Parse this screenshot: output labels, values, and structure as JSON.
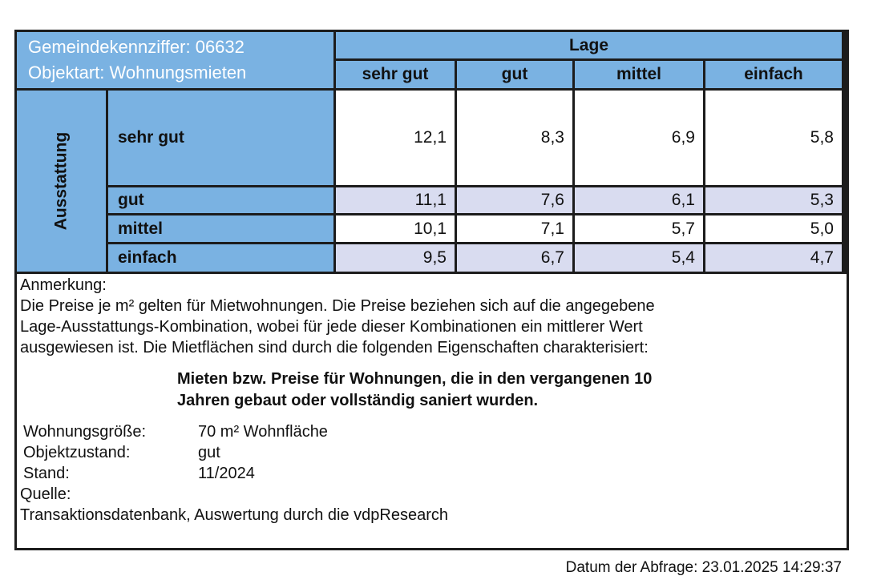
{
  "header": {
    "left_line1": "Gemeindekennziffer: 06632",
    "left_line2": "Objektart: Wohnungsmieten",
    "lage_label": "Lage",
    "columns": [
      "sehr gut",
      "gut",
      "mittel",
      "einfach"
    ]
  },
  "matrix": {
    "axis_label": "Ausstattung",
    "rows": [
      {
        "label": "sehr gut",
        "values": [
          "12,1",
          "8,3",
          "6,9",
          "5,8"
        ]
      },
      {
        "label": "gut",
        "values": [
          "11,1",
          "7,6",
          "6,1",
          "5,3"
        ]
      },
      {
        "label": "mittel",
        "values": [
          "10,1",
          "7,1",
          "5,7",
          "5,0"
        ]
      },
      {
        "label": "einfach",
        "values": [
          "9,5",
          "6,7",
          "5,4",
          "4,7"
        ]
      }
    ]
  },
  "chart_data": {
    "type": "table",
    "title": "Wohnungsmieten Gemeindekennziffer 06632 (Preise je m²)",
    "row_axis": "Ausstattung",
    "col_axis": "Lage",
    "categories": [
      "sehr gut",
      "gut",
      "mittel",
      "einfach"
    ],
    "series": [
      {
        "name": "sehr gut",
        "values": [
          12.1,
          8.3,
          6.9,
          5.8
        ]
      },
      {
        "name": "gut",
        "values": [
          11.1,
          7.6,
          6.1,
          5.3
        ]
      },
      {
        "name": "mittel",
        "values": [
          10.1,
          7.1,
          5.7,
          5.0
        ]
      },
      {
        "name": "einfach",
        "values": [
          9.5,
          6.7,
          5.4,
          4.7
        ]
      }
    ]
  },
  "notes": {
    "anmerkung_title": "Anmerkung:",
    "paragraph_lines": [
      "Die Preise je m² gelten für Mietwohnungen. Die Preise beziehen sich auf die angegebene",
      "Lage-Ausstattungs-Kombination, wobei für jede dieser Kombinationen ein mittlerer Wert",
      "ausgewiesen ist. Die Mietflächen sind durch die folgenden Eigenschaften charakterisiert:"
    ],
    "highlight_lines": [
      "Mieten bzw. Preise für Wohnungen, die in den vergangenen 10",
      "Jahren gebaut oder vollständig saniert wurden."
    ],
    "fields": [
      {
        "label": "Wohnungsgröße:",
        "value": "70 m² Wohnfläche"
      },
      {
        "label": "Objektzustand:",
        "value": "gut"
      },
      {
        "label": "Stand:",
        "value": "11/2024"
      }
    ],
    "quelle_label": "Quelle:",
    "quelle_value": "Transaktionsdatenbank, Auswertung durch die vdpResearch"
  },
  "footer": {
    "query_date": "Datum der Abfrage: 23.01.2025 14:29:37"
  },
  "colors": {
    "header_blue": "#7ab2e2",
    "alt_row_lavender": "#d9dcf0",
    "border_black": "#1c1c1c"
  }
}
